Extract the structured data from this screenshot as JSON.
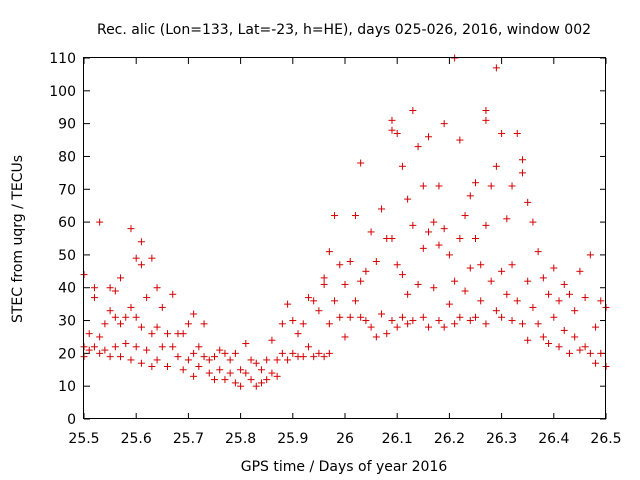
{
  "chart_data": {
    "type": "scatter",
    "title": "Rec. alic (Lon=133, Lat=-23, h=HE), days 025-026, 2016, window 002",
    "xlabel": "GPS time / Days of year 2016",
    "ylabel": "STEC from uqrg / TECUs",
    "xlim": [
      25.5,
      26.5
    ],
    "ylim": [
      0,
      110
    ],
    "xticks": [
      "25.5",
      "25.6",
      "25.7",
      "25.8",
      "25.9",
      "26",
      "26.1",
      "26.2",
      "26.3",
      "26.4",
      "26.5"
    ],
    "yticks": [
      "0",
      "10",
      "20",
      "30",
      "40",
      "50",
      "60",
      "70",
      "80",
      "90",
      "100",
      "110"
    ],
    "grid": false,
    "legend": "none",
    "marker": "+",
    "color": "#d40000",
    "series": [
      {
        "name": "",
        "points": [
          [
            25.5,
            44
          ],
          [
            25.5,
            22
          ],
          [
            25.5,
            19
          ],
          [
            25.51,
            26
          ],
          [
            25.51,
            21
          ],
          [
            25.52,
            40
          ],
          [
            25.52,
            37
          ],
          [
            25.52,
            22
          ],
          [
            25.53,
            60
          ],
          [
            25.53,
            25
          ],
          [
            25.53,
            20
          ],
          [
            25.54,
            29
          ],
          [
            25.54,
            21
          ],
          [
            25.55,
            40
          ],
          [
            25.55,
            33
          ],
          [
            25.55,
            19
          ],
          [
            25.56,
            39
          ],
          [
            25.56,
            31
          ],
          [
            25.56,
            22
          ],
          [
            25.57,
            43
          ],
          [
            25.57,
            29
          ],
          [
            25.57,
            19
          ],
          [
            25.58,
            31
          ],
          [
            25.58,
            23
          ],
          [
            25.59,
            58
          ],
          [
            25.59,
            34
          ],
          [
            25.59,
            18
          ],
          [
            25.6,
            49
          ],
          [
            25.6,
            31
          ],
          [
            25.6,
            22
          ],
          [
            25.61,
            54
          ],
          [
            25.61,
            47
          ],
          [
            25.61,
            28
          ],
          [
            25.61,
            17
          ],
          [
            25.62,
            37
          ],
          [
            25.62,
            21
          ],
          [
            25.63,
            49
          ],
          [
            25.63,
            26
          ],
          [
            25.63,
            16
          ],
          [
            25.64,
            40
          ],
          [
            25.64,
            28
          ],
          [
            25.64,
            18
          ],
          [
            25.65,
            34
          ],
          [
            25.65,
            22
          ],
          [
            25.66,
            26
          ],
          [
            25.66,
            16
          ],
          [
            25.67,
            38
          ],
          [
            25.67,
            22
          ],
          [
            25.68,
            26
          ],
          [
            25.68,
            19
          ],
          [
            25.69,
            26
          ],
          [
            25.69,
            15
          ],
          [
            25.7,
            29
          ],
          [
            25.7,
            18
          ],
          [
            25.71,
            32
          ],
          [
            25.71,
            20
          ],
          [
            25.71,
            13
          ],
          [
            25.72,
            22
          ],
          [
            25.72,
            16
          ],
          [
            25.73,
            29
          ],
          [
            25.73,
            19
          ],
          [
            25.74,
            18
          ],
          [
            25.74,
            14
          ],
          [
            25.75,
            19
          ],
          [
            25.75,
            12
          ],
          [
            25.76,
            21
          ],
          [
            25.76,
            15
          ],
          [
            25.77,
            20
          ],
          [
            25.77,
            12
          ],
          [
            25.78,
            18
          ],
          [
            25.78,
            14
          ],
          [
            25.79,
            20
          ],
          [
            25.79,
            11
          ],
          [
            25.8,
            15
          ],
          [
            25.8,
            10
          ],
          [
            25.81,
            23
          ],
          [
            25.81,
            14
          ],
          [
            25.82,
            18
          ],
          [
            25.82,
            12
          ],
          [
            25.83,
            17
          ],
          [
            25.83,
            10
          ],
          [
            25.84,
            15
          ],
          [
            25.84,
            11
          ],
          [
            25.85,
            18
          ],
          [
            25.85,
            12
          ],
          [
            25.86,
            24
          ],
          [
            25.86,
            14
          ],
          [
            25.87,
            18
          ],
          [
            25.87,
            13
          ],
          [
            25.88,
            29
          ],
          [
            25.88,
            20
          ],
          [
            25.89,
            35
          ],
          [
            25.89,
            18
          ],
          [
            25.9,
            30
          ],
          [
            25.9,
            20
          ],
          [
            25.91,
            26
          ],
          [
            25.91,
            19
          ],
          [
            25.92,
            29
          ],
          [
            25.92,
            19
          ],
          [
            25.93,
            37
          ],
          [
            25.93,
            22
          ],
          [
            25.94,
            36
          ],
          [
            25.94,
            19
          ],
          [
            25.95,
            33
          ],
          [
            25.95,
            20
          ],
          [
            25.96,
            43
          ],
          [
            25.96,
            41
          ],
          [
            25.96,
            19
          ],
          [
            25.97,
            51
          ],
          [
            25.97,
            29
          ],
          [
            25.97,
            20
          ],
          [
            25.98,
            62
          ],
          [
            25.98,
            36
          ],
          [
            25.99,
            47
          ],
          [
            25.99,
            31
          ],
          [
            26.0,
            41
          ],
          [
            26.0,
            25
          ],
          [
            26.01,
            48
          ],
          [
            26.01,
            31
          ],
          [
            26.02,
            62
          ],
          [
            26.02,
            36
          ],
          [
            26.03,
            78
          ],
          [
            26.03,
            42
          ],
          [
            26.03,
            31
          ],
          [
            26.04,
            45
          ],
          [
            26.04,
            30
          ],
          [
            26.05,
            57
          ],
          [
            26.05,
            28
          ],
          [
            26.06,
            48
          ],
          [
            26.06,
            25
          ],
          [
            26.07,
            64
          ],
          [
            26.07,
            32
          ],
          [
            26.08,
            55
          ],
          [
            26.08,
            26
          ],
          [
            26.09,
            91
          ],
          [
            26.09,
            88
          ],
          [
            26.09,
            55
          ],
          [
            26.09,
            30
          ],
          [
            26.1,
            87
          ],
          [
            26.1,
            47
          ],
          [
            26.1,
            28
          ],
          [
            26.11,
            77
          ],
          [
            26.11,
            44
          ],
          [
            26.11,
            31
          ],
          [
            26.12,
            67
          ],
          [
            26.12,
            38
          ],
          [
            26.12,
            29
          ],
          [
            26.13,
            94
          ],
          [
            26.13,
            59
          ],
          [
            26.13,
            30
          ],
          [
            26.14,
            83
          ],
          [
            26.14,
            41
          ],
          [
            26.15,
            71
          ],
          [
            26.15,
            52
          ],
          [
            26.15,
            31
          ],
          [
            26.16,
            86
          ],
          [
            26.16,
            57
          ],
          [
            26.16,
            28
          ],
          [
            26.17,
            60
          ],
          [
            26.17,
            40
          ],
          [
            26.18,
            71
          ],
          [
            26.18,
            53
          ],
          [
            26.18,
            30
          ],
          [
            26.19,
            90
          ],
          [
            26.19,
            58
          ],
          [
            26.19,
            28
          ],
          [
            26.2,
            50
          ],
          [
            26.2,
            35
          ],
          [
            26.21,
            110
          ],
          [
            26.21,
            42
          ],
          [
            26.21,
            29
          ],
          [
            26.22,
            85
          ],
          [
            26.22,
            55
          ],
          [
            26.22,
            31
          ],
          [
            26.23,
            62
          ],
          [
            26.23,
            39
          ],
          [
            26.24,
            68
          ],
          [
            26.24,
            46
          ],
          [
            26.24,
            30
          ],
          [
            26.25,
            72
          ],
          [
            26.25,
            55
          ],
          [
            26.25,
            31
          ],
          [
            26.26,
            47
          ],
          [
            26.26,
            36
          ],
          [
            26.27,
            94
          ],
          [
            26.27,
            91
          ],
          [
            26.27,
            59
          ],
          [
            26.27,
            29
          ],
          [
            26.28,
            71
          ],
          [
            26.28,
            42
          ],
          [
            26.29,
            107
          ],
          [
            26.29,
            77
          ],
          [
            26.29,
            33
          ],
          [
            26.3,
            87
          ],
          [
            26.3,
            45
          ],
          [
            26.3,
            31
          ],
          [
            26.31,
            61
          ],
          [
            26.31,
            38
          ],
          [
            26.32,
            71
          ],
          [
            26.32,
            47
          ],
          [
            26.32,
            30
          ],
          [
            26.33,
            87
          ],
          [
            26.33,
            36
          ],
          [
            26.34,
            79
          ],
          [
            26.34,
            75
          ],
          [
            26.34,
            29
          ],
          [
            26.35,
            66
          ],
          [
            26.35,
            42
          ],
          [
            26.35,
            24
          ],
          [
            26.36,
            60
          ],
          [
            26.36,
            34
          ],
          [
            26.37,
            51
          ],
          [
            26.37,
            29
          ],
          [
            26.38,
            43
          ],
          [
            26.38,
            25
          ],
          [
            26.39,
            38
          ],
          [
            26.39,
            23
          ],
          [
            26.4,
            46
          ],
          [
            26.4,
            31
          ],
          [
            26.41,
            36
          ],
          [
            26.41,
            22
          ],
          [
            26.42,
            41
          ],
          [
            26.42,
            27
          ],
          [
            26.43,
            38
          ],
          [
            26.43,
            20
          ],
          [
            26.44,
            33
          ],
          [
            26.44,
            25
          ],
          [
            26.45,
            45
          ],
          [
            26.45,
            21
          ],
          [
            26.46,
            37
          ],
          [
            26.46,
            22
          ],
          [
            26.47,
            50
          ],
          [
            26.47,
            20
          ],
          [
            26.48,
            28
          ],
          [
            26.48,
            17
          ],
          [
            26.49,
            36
          ],
          [
            26.49,
            20
          ],
          [
            26.5,
            34
          ],
          [
            26.5,
            16
          ]
        ]
      }
    ]
  }
}
